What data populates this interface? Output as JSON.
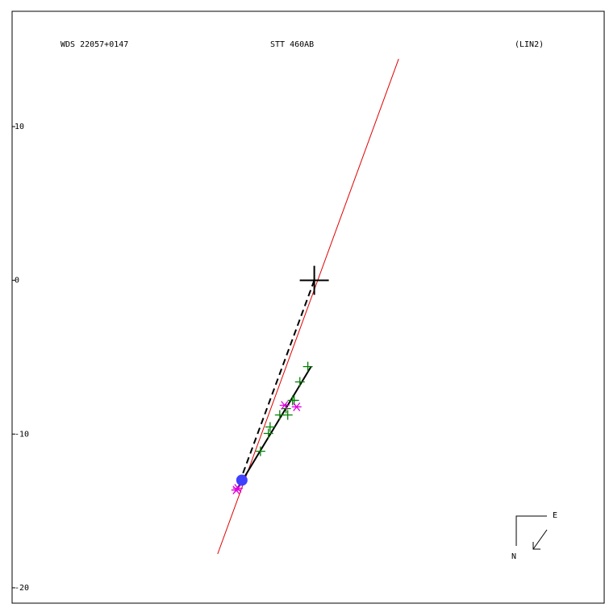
{
  "chart_data": {
    "type": "scatter",
    "title": "WDS 22057+0147",
    "subtitle": "STT 460AB",
    "annotation": "(LIN2)",
    "xlim": [
      -19.7,
      18.9
    ],
    "ylim": [
      -21.0,
      17.5
    ],
    "yticks": [
      -20,
      -10,
      0,
      10
    ],
    "primary": {
      "x": 0,
      "y": 0,
      "color": "#000000"
    },
    "lines": [
      {
        "x": [
          -6.3,
          5.5
        ],
        "y": [
          -17.8,
          14.4
        ],
        "color": "#e00000",
        "width": 1,
        "dashed": false
      },
      {
        "x": [
          0,
          -5.0
        ],
        "y": [
          0,
          -13.5
        ],
        "color": "#000000",
        "width": 2,
        "dashed": true
      },
      {
        "x": [
          -0.2,
          -5.1
        ],
        "y": [
          -5.6,
          -13.7
        ],
        "color": "#000000",
        "width": 2,
        "dashed": false
      }
    ],
    "series": [
      {
        "marker": "plus",
        "color": "#008000",
        "x": [
          -0.42,
          -0.94,
          -1.31,
          -1.84,
          -2.25,
          -2.88,
          -2.99,
          -3.51,
          -1.73,
          -1.42
        ],
        "y": [
          -5.61,
          -6.61,
          -7.81,
          -8.34,
          -8.76,
          -9.54,
          -9.96,
          -11.12,
          -8.76,
          -7.81
        ]
      },
      {
        "marker": "asterisk",
        "color": "#e000e0",
        "x": [
          -1.94,
          -1.15,
          -4.98,
          -5.09
        ],
        "y": [
          -8.13,
          -8.23,
          -13.53,
          -13.64
        ]
      },
      {
        "marker": "circle",
        "color": "#4040ff",
        "x": [
          -4.72
        ],
        "y": [
          -13.0
        ]
      }
    ],
    "compass": {
      "east": "E",
      "north": "N"
    }
  }
}
